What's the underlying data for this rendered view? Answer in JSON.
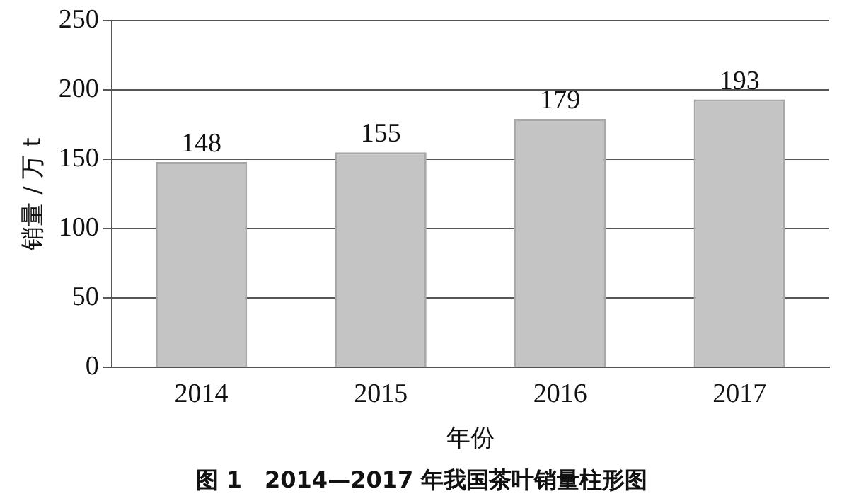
{
  "chart_data": {
    "type": "bar",
    "title": "图 1　2014—2017 年我国茶叶销量柱形图",
    "xlabel": "年份",
    "ylabel": "销量 / 万 t",
    "categories": [
      "2014",
      "2015",
      "2016",
      "2017"
    ],
    "values": [
      148,
      155,
      179,
      193
    ],
    "color": "#c4c4c4",
    "ylim": [
      0,
      250
    ],
    "yticks": [
      0,
      50,
      100,
      150,
      200,
      250
    ],
    "grid": "y",
    "data_labels": true
  }
}
